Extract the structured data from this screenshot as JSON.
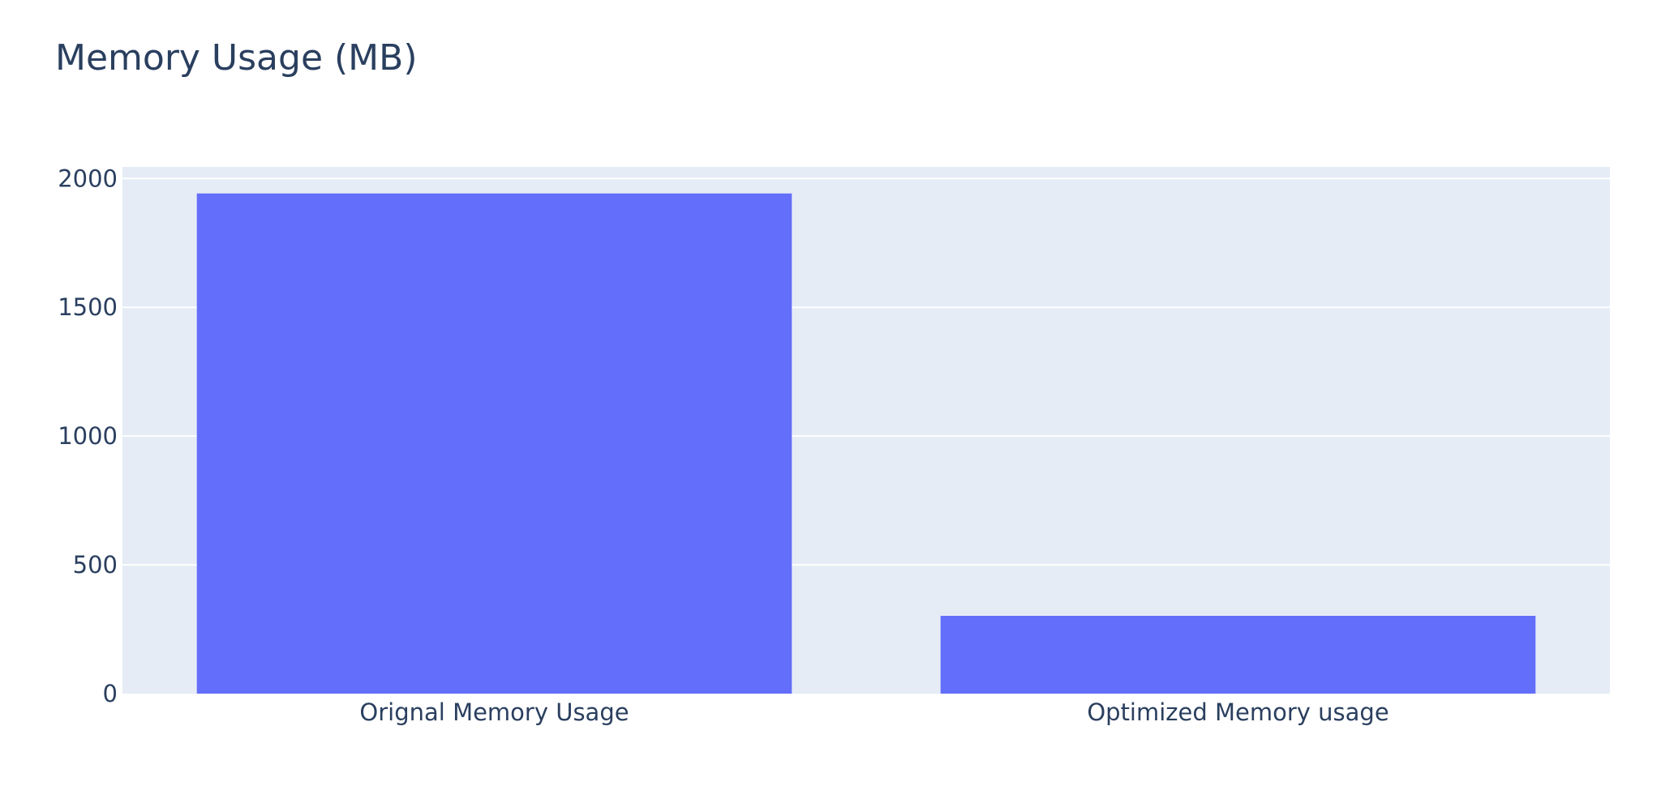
{
  "chart_data": {
    "type": "bar",
    "title": "Memory Usage (MB)",
    "xlabel": "",
    "ylabel": "",
    "categories": [
      "Orignal Memory Usage",
      "Optimized Memory usage"
    ],
    "values": [
      1942,
      302
    ],
    "ylim": [
      0,
      2045
    ],
    "yticks": [
      0,
      500,
      1000,
      1500,
      2000
    ],
    "grid": true,
    "legend": "none"
  },
  "colors": {
    "bar": "#636efa",
    "plot_background": "#e5ecf6",
    "gridline": "#ffffff",
    "text": "#2a3f5f"
  }
}
